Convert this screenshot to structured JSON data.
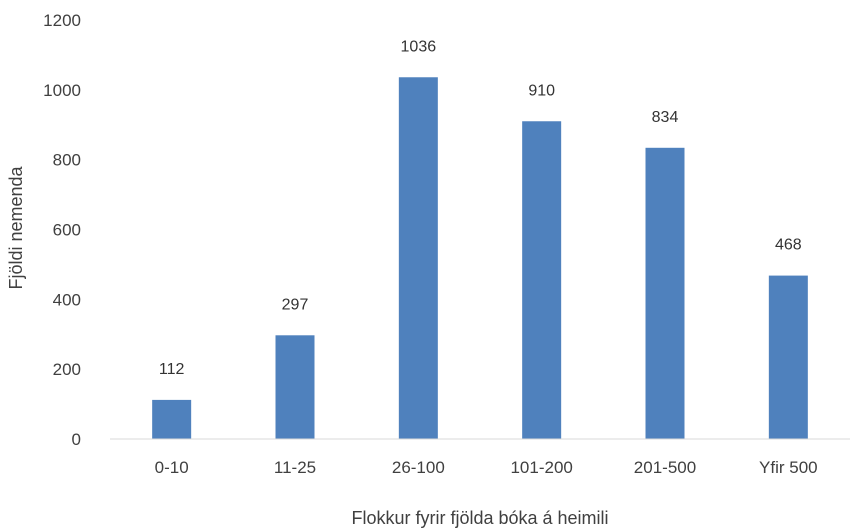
{
  "chart_data": {
    "type": "bar",
    "categories": [
      "0-10",
      "11-25",
      "26-100",
      "101-200",
      "201-500",
      "Yfir 500"
    ],
    "values": [
      112,
      297,
      1036,
      910,
      834,
      468
    ],
    "data_labels": [
      "112",
      "297",
      "1036",
      "910",
      "834",
      "468"
    ],
    "xlabel": "Flokkur fyrir fjölda bóka á heimili",
    "ylabel": "Fjöldi nemenda",
    "ylim": [
      0,
      1200
    ],
    "yticks": [
      0,
      200,
      400,
      600,
      800,
      1000,
      1200
    ],
    "ytick_labels": [
      "0",
      "200",
      "400",
      "600",
      "800",
      "1000",
      "1200"
    ],
    "grid": false,
    "legend": "none",
    "bar_color": "#4f81bd",
    "axis_color": "#d9d9d9"
  }
}
